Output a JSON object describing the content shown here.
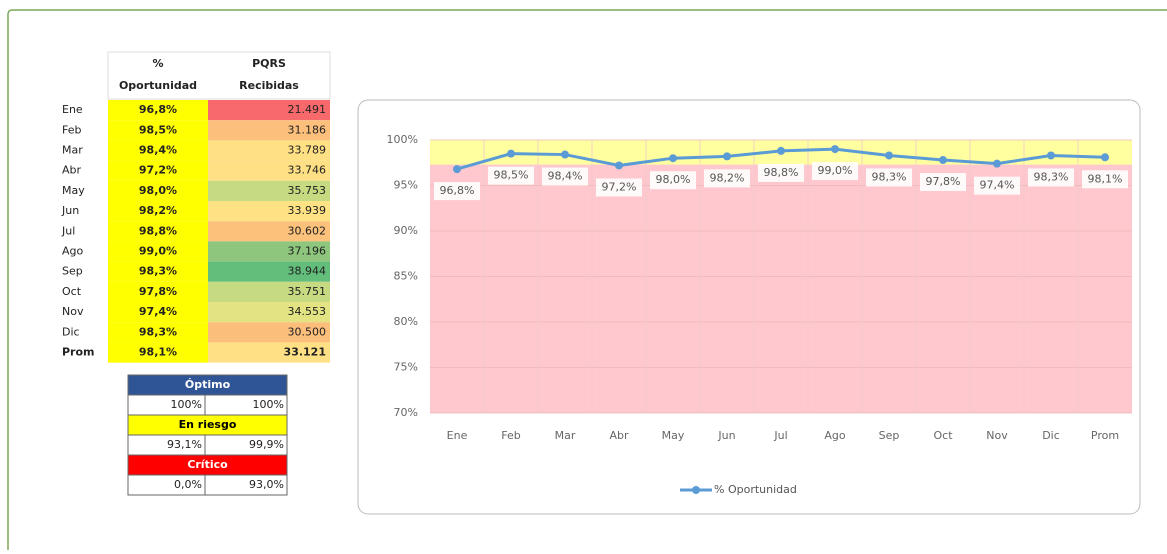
{
  "table": {
    "headers": [
      [
        "%",
        "Oportunidad"
      ],
      [
        "PQRS",
        "Recibidas"
      ]
    ],
    "rows": [
      {
        "label": "Ene",
        "pct": "96,8%",
        "pqrs": "21.491",
        "color": "#f8696b"
      },
      {
        "label": "Feb",
        "pct": "98,5%",
        "pqrs": "31.186",
        "color": "#fcc07c"
      },
      {
        "label": "Mar",
        "pct": "98,4%",
        "pqrs": "33.789",
        "color": "#ffe084"
      },
      {
        "label": "Abr",
        "pct": "97,2%",
        "pqrs": "33.746",
        "color": "#ffe084"
      },
      {
        "label": "May",
        "pct": "98,0%",
        "pqrs": "35.753",
        "color": "#c6da81"
      },
      {
        "label": "Jun",
        "pct": "98,2%",
        "pqrs": "33.939",
        "color": "#fee284"
      },
      {
        "label": "Jul",
        "pct": "98,8%",
        "pqrs": "30.602",
        "color": "#fcc27c"
      },
      {
        "label": "Ago",
        "pct": "99,0%",
        "pqrs": "37.196",
        "color": "#8ec67d"
      },
      {
        "label": "Sep",
        "pct": "98,3%",
        "pqrs": "38.944",
        "color": "#63be7b"
      },
      {
        "label": "Oct",
        "pct": "97,8%",
        "pqrs": "35.751",
        "color": "#c6da81"
      },
      {
        "label": "Nov",
        "pct": "97,4%",
        "pqrs": "34.553",
        "color": "#e3e383"
      },
      {
        "label": "Dic",
        "pct": "98,3%",
        "pqrs": "30.500",
        "color": "#fcbf7b"
      }
    ],
    "total": {
      "label": "Prom",
      "pct": "98,1%",
      "pqrs": "33.121",
      "color": "#ffe084"
    }
  },
  "thresholds": [
    {
      "label": "Óptimo",
      "color": "#2f5597",
      "text_color": "#ffffff",
      "low": "100%",
      "high": "100%"
    },
    {
      "label": "En riesgo",
      "color": "#ffff00",
      "text_color": "#000000",
      "low": "93,1%",
      "high": "99,9%"
    },
    {
      "label": "Crítico",
      "color": "#ff0000",
      "text_color": "#ffffff",
      "low": "0,0%",
      "high": "93,0%"
    }
  ],
  "chart_data": {
    "type": "line",
    "categories": [
      "Ene",
      "Feb",
      "Mar",
      "Abr",
      "May",
      "Jun",
      "Jul",
      "Ago",
      "Sep",
      "Oct",
      "Nov",
      "Dic",
      "Prom"
    ],
    "series": [
      {
        "name": "% Oportunidad",
        "color": "#5b9bd5",
        "values": [
          96.8,
          98.5,
          98.4,
          97.2,
          98.0,
          98.2,
          98.8,
          99.0,
          98.3,
          97.8,
          97.4,
          98.3,
          98.1
        ],
        "value_labels": [
          "96,8%",
          "98,5%",
          "98,4%",
          "97,2%",
          "98,0%",
          "98,2%",
          "98,8%",
          "99,0%",
          "98,3%",
          "97,8%",
          "97,4%",
          "98,3%",
          "98,1%"
        ]
      }
    ],
    "ylim": [
      70,
      100
    ],
    "yticks": [
      {
        "value": 70,
        "label": "70%"
      },
      {
        "value": 75,
        "label": "75%"
      },
      {
        "value": 80,
        "label": "80%"
      },
      {
        "value": 85,
        "label": "85%"
      },
      {
        "value": 90,
        "label": "90%"
      },
      {
        "value": 95,
        "label": "95%"
      },
      {
        "value": 100,
        "label": "100%"
      }
    ],
    "bands": [
      {
        "from": 70,
        "to": 97.3,
        "color": "#ffc7ce"
      },
      {
        "from": 97.3,
        "to": 100,
        "color": "#ffff9f"
      }
    ],
    "grid": true,
    "legend": "bottom"
  }
}
